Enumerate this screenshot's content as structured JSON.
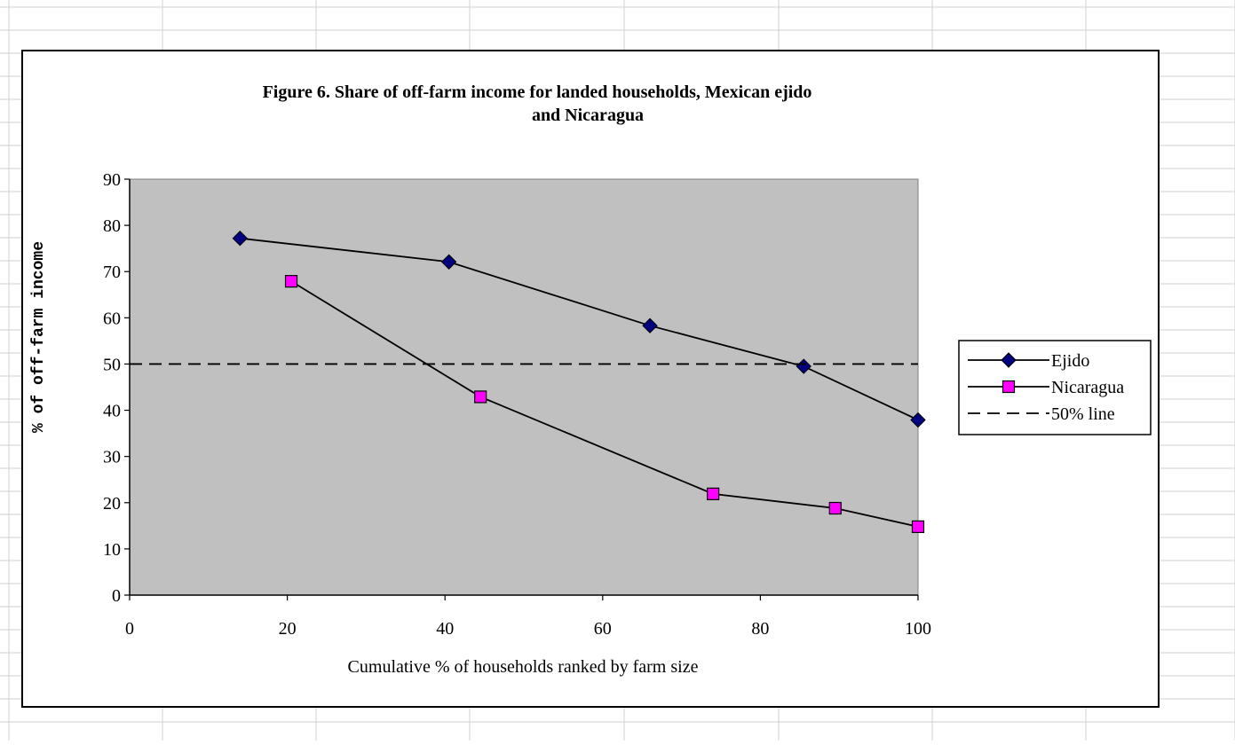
{
  "chart_data": {
    "type": "line",
    "title": [
      "Figure 6.  Share of off-farm income for landed households, Mexican ejido",
      "and Nicaragua"
    ],
    "xlabel": "Cumulative % of households ranked by farm size",
    "ylabel": "% of off-farm income",
    "xlim": [
      0,
      100
    ],
    "ylim": [
      0,
      90
    ],
    "xticks": [
      0,
      20,
      40,
      60,
      80,
      100
    ],
    "yticks": [
      0,
      10,
      20,
      30,
      40,
      50,
      60,
      70,
      80,
      90
    ],
    "plot_background": "#c0c0c0",
    "grid": false,
    "legend_position": "right",
    "series": [
      {
        "name": "Ejido",
        "marker": "diamond",
        "marker_color": "#000080",
        "line_color": "#000000",
        "x": [
          14,
          40.5,
          66,
          85.5,
          100
        ],
        "y": [
          77.2,
          72.1,
          58.3,
          49.5,
          37.9
        ]
      },
      {
        "name": "Nicaragua",
        "marker": "square",
        "marker_color": "#ff00ff",
        "line_color": "#000000",
        "x": [
          20.5,
          44.5,
          74,
          89.5,
          100
        ],
        "y": [
          67.9,
          42.9,
          21.9,
          18.8,
          14.8
        ]
      },
      {
        "name": "50% line",
        "style": "dashed",
        "line_color": "#000000",
        "x": [
          0,
          100
        ],
        "y": [
          50,
          50
        ]
      }
    ]
  }
}
